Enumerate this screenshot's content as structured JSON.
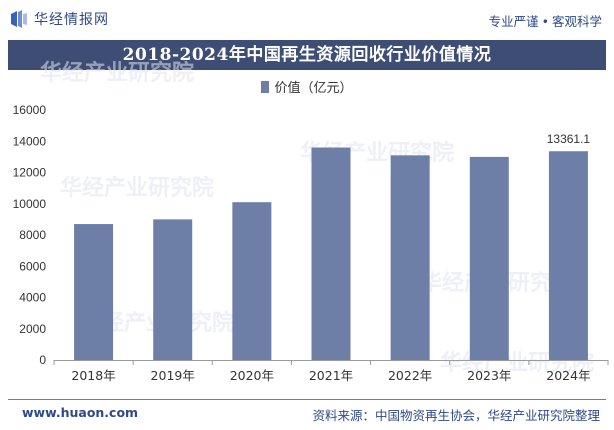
{
  "header": {
    "brand": "华经情报网",
    "slogan_left": "专业严谨",
    "slogan_sep": "•",
    "slogan_right": "客观科学"
  },
  "footer": {
    "url": "www.huaon.com",
    "source": "资料来源：中国物资再生协会，华经产业研究院整理"
  },
  "colors": {
    "bar": "#6e7fa7",
    "title_bg": "#3d4d74",
    "brand": "#2d4a8a"
  },
  "chart_data": {
    "type": "bar",
    "title": "2018-2024年中国再生资源回收行业价值情况",
    "categories": [
      "2018年",
      "2019年",
      "2020年",
      "2021年",
      "2022年",
      "2023年",
      "2024年"
    ],
    "series": [
      {
        "name": "价值（亿元）",
        "values": [
          8700,
          9000,
          10100,
          13600,
          13100,
          13000,
          13361.1
        ]
      }
    ],
    "data_labels": [
      {
        "category": "2024年",
        "text": "13361.1"
      }
    ],
    "ylim": [
      0,
      16000
    ],
    "yticks": [
      "0",
      "2000",
      "4000",
      "6000",
      "8000",
      "10000",
      "12000",
      "14000",
      "16000"
    ],
    "grid": false,
    "legend_position": "top-center"
  }
}
